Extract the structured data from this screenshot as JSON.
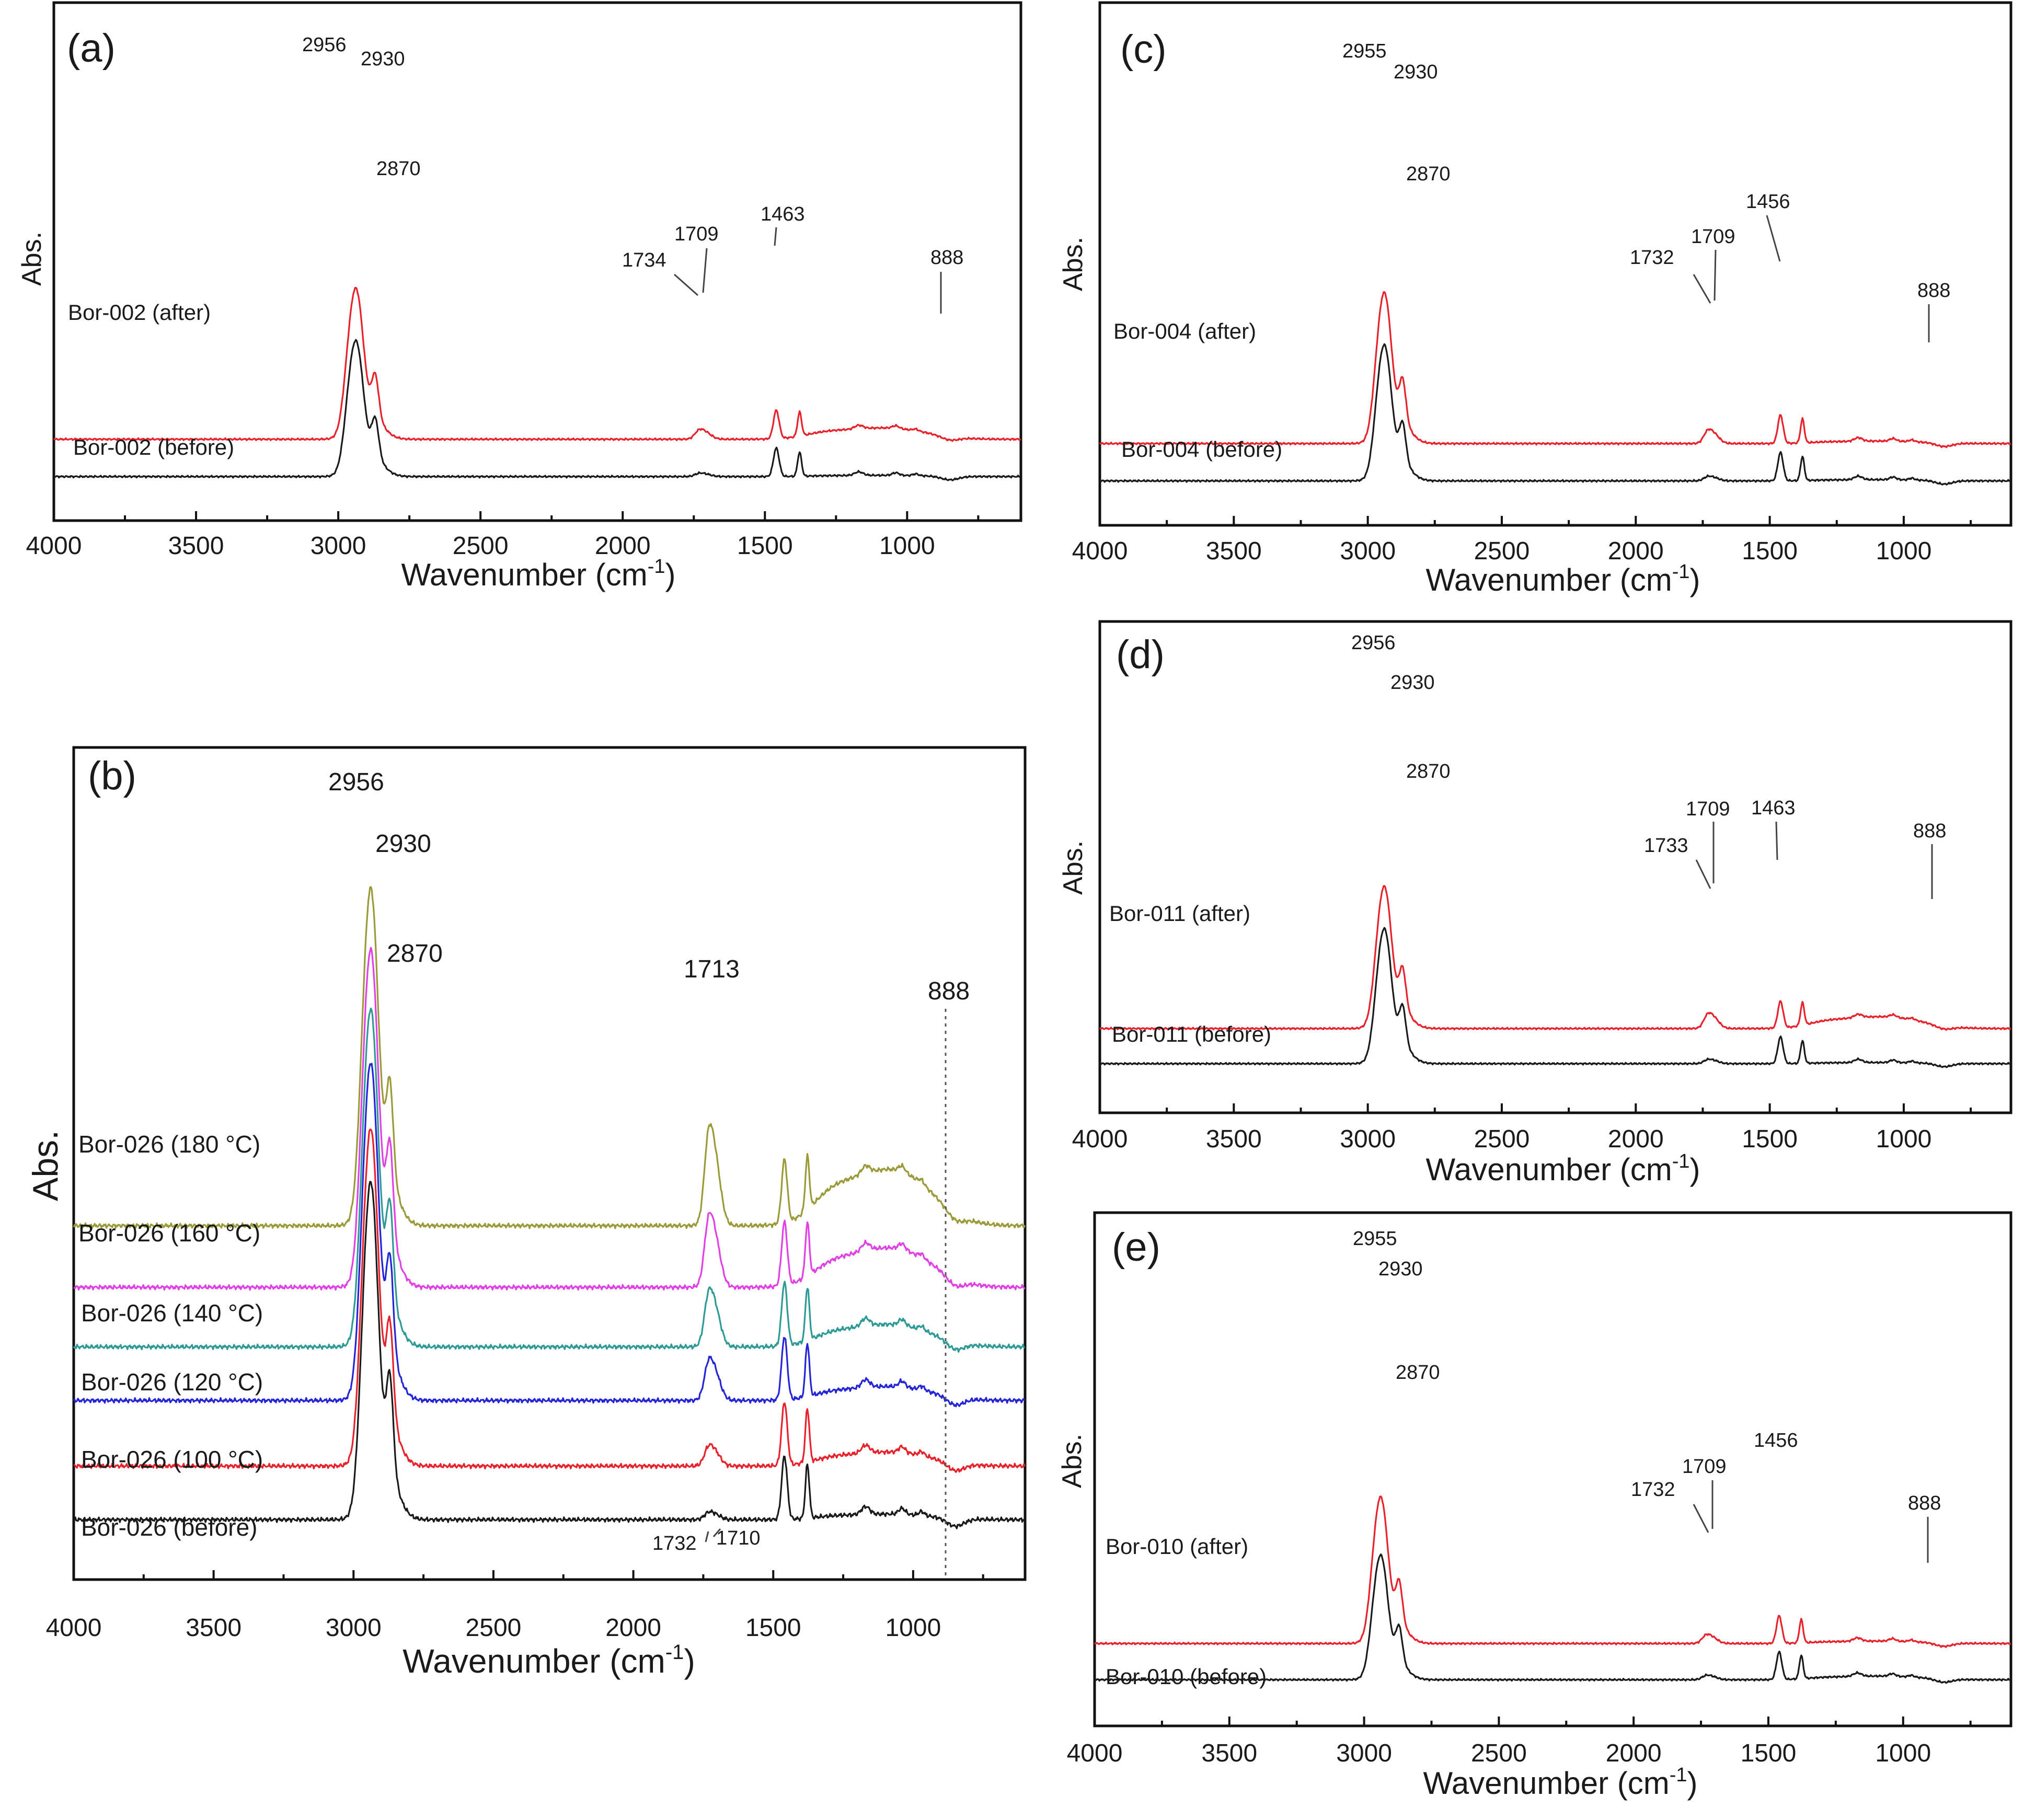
{
  "figure_title": "",
  "chart_data": [
    {
      "id": "a",
      "type": "line",
      "panel_label": "(a)",
      "xlabel": "Wavenumber (cm",
      "xlabel_sup": "-1",
      "xlabel_end": ")",
      "ylabel": "Abs.",
      "xlim": [
        4000,
        600
      ],
      "xticks": [
        4000,
        3500,
        3000,
        2500,
        2000,
        1500,
        1000
      ],
      "xtick_labels": [
        "4000",
        "3500",
        "3000",
        "2500",
        "2000",
        "1500",
        "1000"
      ],
      "series": [
        {
          "name": "Bor-002 (after)",
          "color": "#e8212b",
          "baseline": 0.42,
          "peak_scale": 1.0,
          "wide_band": 0.09,
          "carbonyl": 0.085
        },
        {
          "name": "Bor-002 (before)",
          "color": "#1a1a1a",
          "baseline": 0.0,
          "peak_scale": 0.9,
          "wide_band": 0.01,
          "carbonyl": 0.03
        }
      ],
      "peak_labels": [
        "2956",
        "2930",
        "2870",
        "1734",
        "1709",
        "1463",
        "888"
      ]
    },
    {
      "id": "b",
      "type": "line",
      "panel_label": "(b)",
      "xlabel": "Wavenumber (cm",
      "xlabel_sup": "-1",
      "xlabel_end": ")",
      "ylabel": "Abs.",
      "xlim": [
        4000,
        600
      ],
      "xticks": [
        4000,
        3500,
        3000,
        2500,
        2000,
        1500,
        1000
      ],
      "xtick_labels": [
        "4000",
        "3500",
        "3000",
        "2500",
        "2000",
        "1500",
        "1000"
      ],
      "series": [
        {
          "name": "Bor-026 (180 °C)",
          "color": "#9a9a38",
          "baseline": 1.48,
          "peak_scale": 1.0,
          "wide_band": 0.2,
          "carbonyl": 0.38
        },
        {
          "name": "Bor-026 (160 °C)",
          "color": "#e040e6",
          "baseline": 1.17,
          "peak_scale": 1.0,
          "wide_band": 0.14,
          "carbonyl": 0.28
        },
        {
          "name": "Bor-026 (140 °C)",
          "color": "#2e9a96",
          "baseline": 0.87,
          "peak_scale": 1.0,
          "wide_band": 0.08,
          "carbonyl": 0.22
        },
        {
          "name": "Bor-026 (120 °C)",
          "color": "#2424d8",
          "baseline": 0.6,
          "peak_scale": 1.0,
          "wide_band": 0.05,
          "carbonyl": 0.16
        },
        {
          "name": "Bor-026 (100 °C)",
          "color": "#e8212b",
          "baseline": 0.27,
          "peak_scale": 1.0,
          "wide_band": 0.05,
          "carbonyl": 0.08
        },
        {
          "name": "Bor-026 (before)",
          "color": "#1a1a1a",
          "baseline": 0.0,
          "peak_scale": 1.0,
          "wide_band": 0.02,
          "carbonyl": 0.03
        }
      ],
      "peak_labels": [
        "2956",
        "2930",
        "2870",
        "1713",
        "888",
        "1732",
        "1710"
      ]
    },
    {
      "id": "c",
      "type": "line",
      "panel_label": "(c)",
      "xlabel": "Wavenumber (cm",
      "xlabel_sup": "-1",
      "xlabel_end": ")",
      "ylabel": "Abs.",
      "xlim": [
        4000,
        600
      ],
      "xticks": [
        4000,
        3500,
        3000,
        2500,
        2000,
        1500,
        1000
      ],
      "xtick_labels": [
        "4000",
        "3500",
        "3000",
        "2500",
        "2000",
        "1500",
        "1000"
      ],
      "series": [
        {
          "name": "Bor-004 (after)",
          "color": "#e8212b",
          "baseline": 0.42,
          "peak_scale": 1.0,
          "wide_band": 0.02,
          "carbonyl": 0.12
        },
        {
          "name": "Bor-004 (before)",
          "color": "#1a1a1a",
          "baseline": 0.0,
          "peak_scale": 0.9,
          "wide_band": 0.01,
          "carbonyl": 0.04
        }
      ],
      "peak_labels": [
        "2955",
        "2930",
        "2870",
        "1732",
        "1709",
        "1456",
        "888"
      ]
    },
    {
      "id": "d",
      "type": "line",
      "panel_label": "(d)",
      "xlabel": "Wavenumber (cm",
      "xlabel_sup": "-1",
      "xlabel_end": ")",
      "ylabel": "Abs.",
      "xlim": [
        4000,
        600
      ],
      "xticks": [
        4000,
        3500,
        3000,
        2500,
        2000,
        1500,
        1000
      ],
      "xtick_labels": [
        "4000",
        "3500",
        "3000",
        "2500",
        "2000",
        "1500",
        "1000"
      ],
      "series": [
        {
          "name": "Bor-011 (after)",
          "color": "#e8212b",
          "baseline": 0.42,
          "peak_scale": 1.0,
          "wide_band": 0.1,
          "carbonyl": 0.14
        },
        {
          "name": "Bor-011 (before)",
          "color": "#1a1a1a",
          "baseline": 0.0,
          "peak_scale": 0.95,
          "wide_band": 0.01,
          "carbonyl": 0.04
        }
      ],
      "peak_labels": [
        "2956",
        "2930",
        "2870",
        "1733",
        "1709",
        "1463",
        "888"
      ]
    },
    {
      "id": "e",
      "type": "line",
      "panel_label": "(e)",
      "xlabel": "Wavenumber (cm",
      "xlabel_sup": "-1",
      "xlabel_end": ")",
      "ylabel": "Abs.",
      "xlim": [
        4000,
        600
      ],
      "xticks": [
        4000,
        3500,
        3000,
        2500,
        2000,
        1500,
        1000
      ],
      "xtick_labels": [
        "4000",
        "3500",
        "3000",
        "2500",
        "2000",
        "1500",
        "1000"
      ],
      "series": [
        {
          "name": "Bor-010 (after)",
          "color": "#e8212b",
          "baseline": 0.42,
          "peak_scale": 1.0,
          "wide_band": 0.02,
          "carbonyl": 0.08
        },
        {
          "name": "Bor-010 (before)",
          "color": "#1a1a1a",
          "baseline": 0.0,
          "peak_scale": 0.85,
          "wide_band": 0.03,
          "carbonyl": 0.04
        }
      ],
      "peak_labels": [
        "2955",
        "2930",
        "2870",
        "1732",
        "1709",
        "1456",
        "888"
      ]
    }
  ]
}
